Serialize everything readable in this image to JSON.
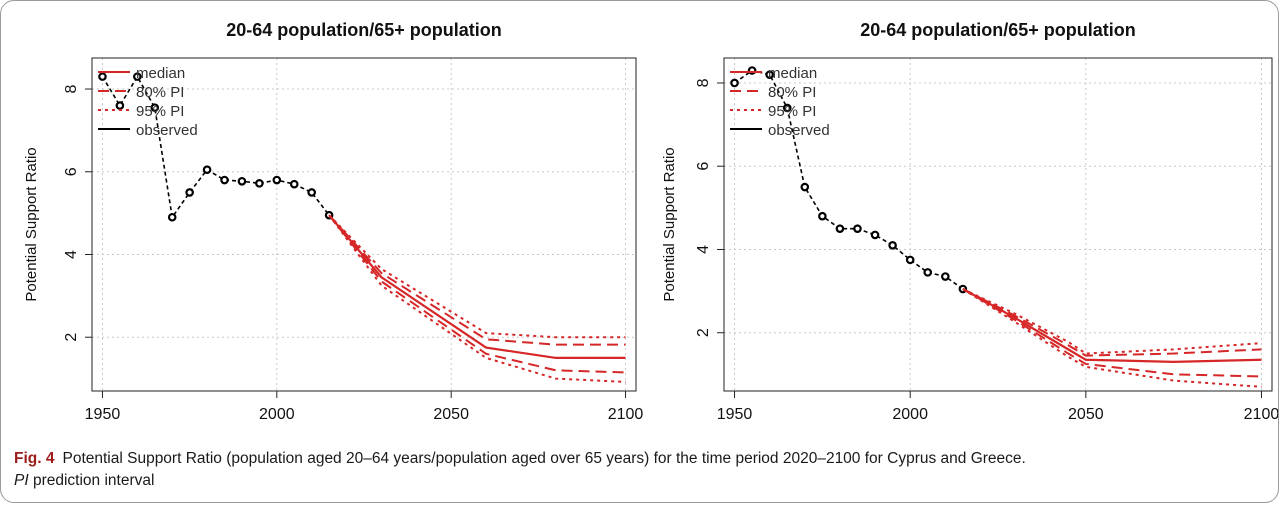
{
  "figure_label": "Fig. 4",
  "caption_text": "Potential Support Ratio (population aged 20–64 years/population aged over 65 years) for the time period 2020–2100 for Cyprus and Greece.",
  "caption_abbr": "PI",
  "caption_abbr_def": " prediction interval",
  "colors": {
    "observed": "#000000",
    "median": "#d62728",
    "pi": "#d62728",
    "grid": "#c8c8c8"
  },
  "chart_data": [
    {
      "type": "line",
      "title": "20-64 population/65+ population",
      "xlabel": "",
      "ylabel": "Potential Support Ratio",
      "xlim": [
        1947,
        2103
      ],
      "ylim": [
        0.7,
        8.75
      ],
      "xticks": [
        1950,
        2000,
        2050,
        2100
      ],
      "yticks": [
        2,
        4,
        6,
        8
      ],
      "legend": {
        "position": "top-left",
        "entries": [
          "median",
          "80% PI",
          "95% PI",
          "observed"
        ]
      },
      "series": [
        {
          "name": "observed",
          "style": "points",
          "x": [
            1950,
            1955,
            1960,
            1965,
            1970,
            1975,
            1980,
            1985,
            1990,
            1995,
            2000,
            2005,
            2010,
            2015
          ],
          "y": [
            8.3,
            7.6,
            8.3,
            7.55,
            4.9,
            5.5,
            6.05,
            5.8,
            5.77,
            5.72,
            5.8,
            5.7,
            5.5,
            4.95
          ]
        },
        {
          "name": "median",
          "x": [
            2015,
            2030,
            2060,
            2080,
            2100
          ],
          "y": [
            4.95,
            3.45,
            1.75,
            1.5,
            1.5
          ]
        },
        {
          "name": "80% PI",
          "x": [
            2015,
            2030,
            2060,
            2080,
            2100
          ],
          "y": [
            4.95,
            3.55,
            1.95,
            1.82,
            1.82
          ]
        },
        {
          "name": "80% PI",
          "x": [
            2015,
            2030,
            2060,
            2080,
            2100
          ],
          "y": [
            4.95,
            3.35,
            1.6,
            1.2,
            1.15
          ]
        },
        {
          "name": "95% PI",
          "x": [
            2015,
            2030,
            2060,
            2080,
            2100
          ],
          "y": [
            4.95,
            3.65,
            2.1,
            2.0,
            2.0
          ]
        },
        {
          "name": "95% PI",
          "x": [
            2015,
            2030,
            2060,
            2080,
            2100
          ],
          "y": [
            4.95,
            3.25,
            1.5,
            1.0,
            0.92
          ]
        }
      ]
    },
    {
      "type": "line",
      "title": "20-64 population/65+ population",
      "xlabel": "",
      "ylabel": "Potential Support Ratio",
      "xlim": [
        1947,
        2103
      ],
      "ylim": [
        0.6,
        8.6
      ],
      "xticks": [
        1950,
        2000,
        2050,
        2100
      ],
      "yticks": [
        2,
        4,
        6,
        8
      ],
      "legend": {
        "position": "top-left",
        "entries": [
          "median",
          "80% PI",
          "95% PI",
          "observed"
        ]
      },
      "series": [
        {
          "name": "observed",
          "style": "points",
          "x": [
            1950,
            1955,
            1960,
            1965,
            1970,
            1975,
            1980,
            1985,
            1990,
            1995,
            2000,
            2005,
            2010,
            2015
          ],
          "y": [
            8.0,
            8.3,
            8.2,
            7.4,
            5.5,
            4.8,
            4.5,
            4.5,
            4.35,
            4.1,
            3.75,
            3.45,
            3.35,
            3.05
          ]
        },
        {
          "name": "median",
          "x": [
            2015,
            2030,
            2045,
            2050,
            2075,
            2100
          ],
          "y": [
            3.05,
            2.35,
            1.6,
            1.35,
            1.3,
            1.35
          ]
        },
        {
          "name": "80% PI",
          "x": [
            2015,
            2030,
            2045,
            2050,
            2075,
            2100
          ],
          "y": [
            3.05,
            2.4,
            1.7,
            1.45,
            1.5,
            1.6
          ]
        },
        {
          "name": "80% PI",
          "x": [
            2015,
            2030,
            2045,
            2050,
            2075,
            2100
          ],
          "y": [
            3.05,
            2.3,
            1.5,
            1.25,
            1.0,
            0.95
          ]
        },
        {
          "name": "95% PI",
          "x": [
            2015,
            2030,
            2045,
            2050,
            2075,
            2100
          ],
          "y": [
            3.05,
            2.45,
            1.78,
            1.5,
            1.6,
            1.75
          ]
        },
        {
          "name": "95% PI",
          "x": [
            2015,
            2030,
            2045,
            2050,
            2075,
            2100
          ],
          "y": [
            3.05,
            2.25,
            1.42,
            1.18,
            0.85,
            0.7
          ]
        }
      ]
    }
  ]
}
